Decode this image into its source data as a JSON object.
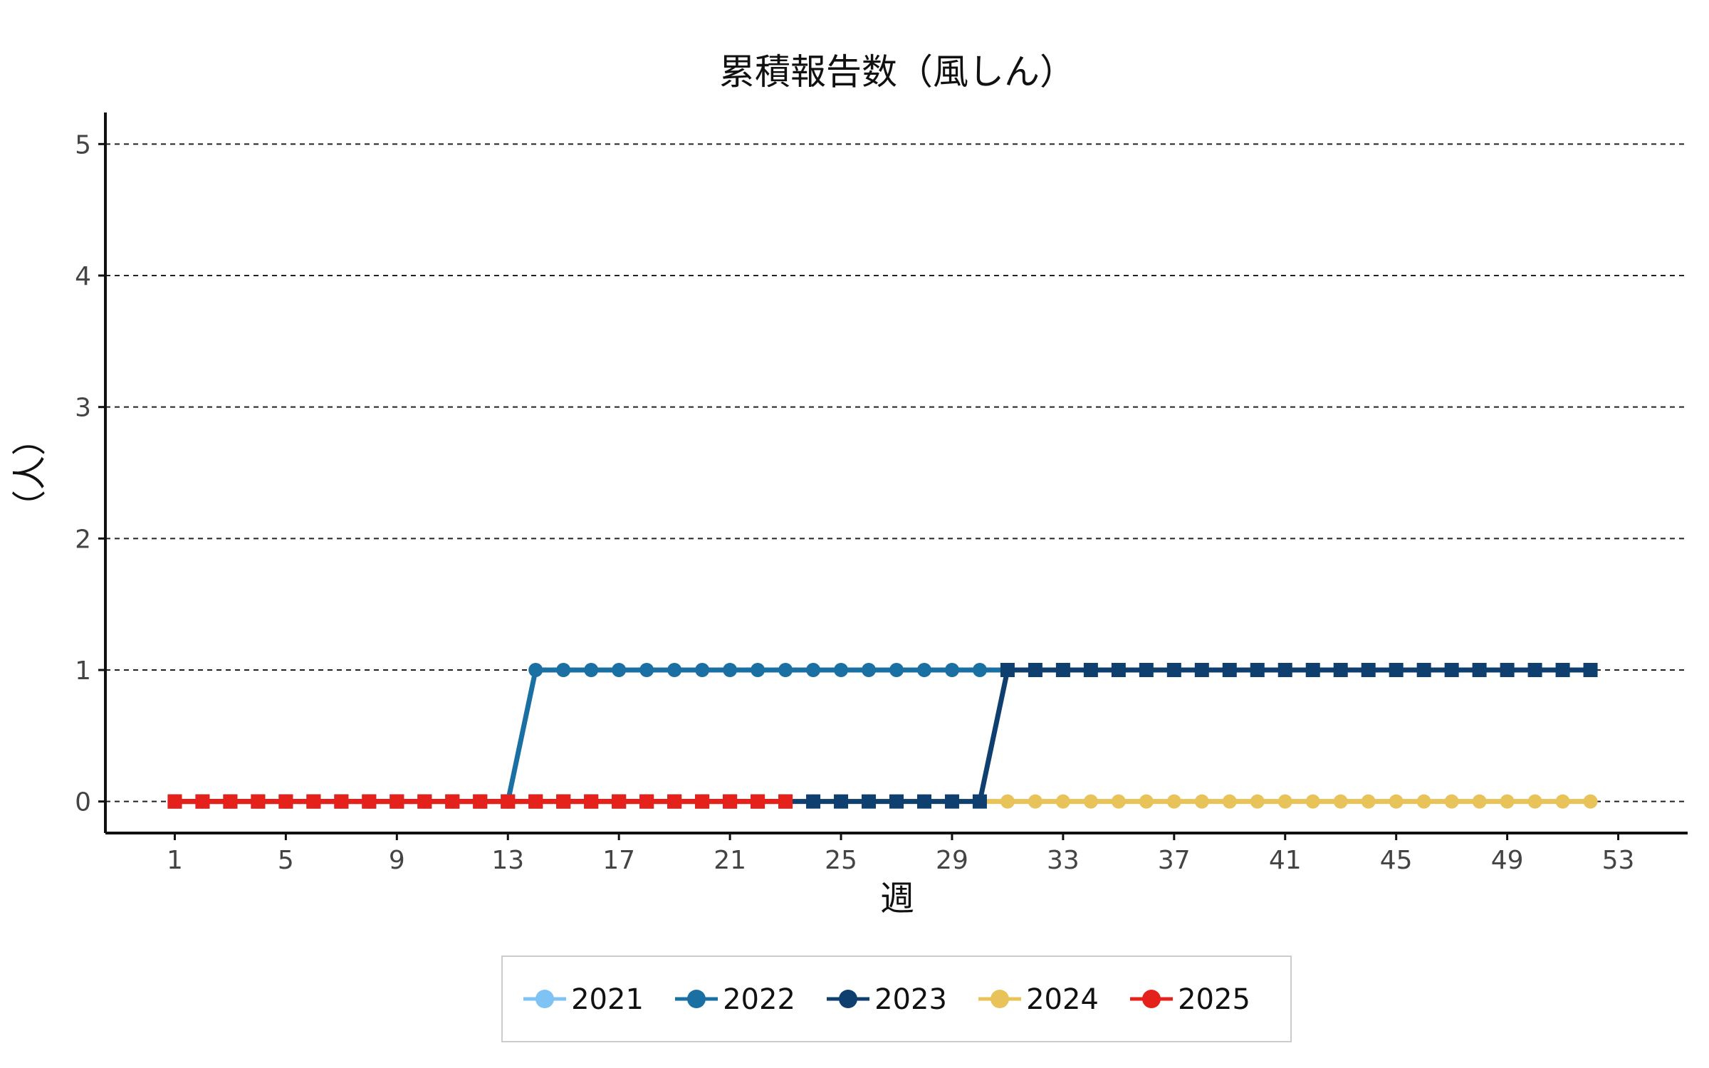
{
  "chart_data": {
    "type": "line",
    "title": "累積報告数（風しん）",
    "xlabel": "週",
    "ylabel": "（人）",
    "xlim": [
      -1.5,
      55.5
    ],
    "ylim": [
      -0.24,
      5.24
    ],
    "xticks": [
      "1",
      "5",
      "9",
      "13",
      "17",
      "21",
      "25",
      "29",
      "33",
      "37",
      "41",
      "45",
      "49",
      "53"
    ],
    "yticks": [
      "0",
      "1",
      "2",
      "3",
      "4",
      "5"
    ],
    "grid": "horizontal-dashed",
    "legend_position": "bottom",
    "series": [
      {
        "name": "2021",
        "color": "#7fc3f5",
        "marker": "circle",
        "points": []
      },
      {
        "name": "2022",
        "color": "#1a6fa3",
        "marker": "circle",
        "points": [
          [
            1,
            0
          ],
          [
            2,
            0
          ],
          [
            3,
            0
          ],
          [
            4,
            0
          ],
          [
            5,
            0
          ],
          [
            6,
            0
          ],
          [
            7,
            0
          ],
          [
            8,
            0
          ],
          [
            9,
            0
          ],
          [
            10,
            0
          ],
          [
            11,
            0
          ],
          [
            12,
            0
          ],
          [
            13,
            0
          ],
          [
            14,
            1
          ],
          [
            15,
            1
          ],
          [
            16,
            1
          ],
          [
            17,
            1
          ],
          [
            18,
            1
          ],
          [
            19,
            1
          ],
          [
            20,
            1
          ],
          [
            21,
            1
          ],
          [
            22,
            1
          ],
          [
            23,
            1
          ],
          [
            24,
            1
          ],
          [
            25,
            1
          ],
          [
            26,
            1
          ],
          [
            27,
            1
          ],
          [
            28,
            1
          ],
          [
            29,
            1
          ],
          [
            30,
            1
          ],
          [
            31,
            1
          ]
        ]
      },
      {
        "name": "2023",
        "color": "#0f3f6e",
        "marker": "square",
        "points": [
          [
            1,
            0
          ],
          [
            2,
            0
          ],
          [
            3,
            0
          ],
          [
            4,
            0
          ],
          [
            5,
            0
          ],
          [
            6,
            0
          ],
          [
            7,
            0
          ],
          [
            8,
            0
          ],
          [
            9,
            0
          ],
          [
            10,
            0
          ],
          [
            11,
            0
          ],
          [
            12,
            0
          ],
          [
            13,
            0
          ],
          [
            14,
            0
          ],
          [
            15,
            0
          ],
          [
            16,
            0
          ],
          [
            17,
            0
          ],
          [
            18,
            0
          ],
          [
            19,
            0
          ],
          [
            20,
            0
          ],
          [
            21,
            0
          ],
          [
            22,
            0
          ],
          [
            23,
            0
          ],
          [
            24,
            0
          ],
          [
            25,
            0
          ],
          [
            26,
            0
          ],
          [
            27,
            0
          ],
          [
            28,
            0
          ],
          [
            29,
            0
          ],
          [
            30,
            0
          ],
          [
            31,
            1
          ],
          [
            32,
            1
          ],
          [
            33,
            1
          ],
          [
            34,
            1
          ],
          [
            35,
            1
          ],
          [
            36,
            1
          ],
          [
            37,
            1
          ],
          [
            38,
            1
          ],
          [
            39,
            1
          ],
          [
            40,
            1
          ],
          [
            41,
            1
          ],
          [
            42,
            1
          ],
          [
            43,
            1
          ],
          [
            44,
            1
          ],
          [
            45,
            1
          ],
          [
            46,
            1
          ],
          [
            47,
            1
          ],
          [
            48,
            1
          ],
          [
            49,
            1
          ],
          [
            50,
            1
          ],
          [
            51,
            1
          ],
          [
            52,
            1
          ]
        ]
      },
      {
        "name": "2024",
        "color": "#e8c35a",
        "marker": "circle",
        "points": [
          [
            1,
            0
          ],
          [
            2,
            0
          ],
          [
            3,
            0
          ],
          [
            4,
            0
          ],
          [
            5,
            0
          ],
          [
            6,
            0
          ],
          [
            7,
            0
          ],
          [
            8,
            0
          ],
          [
            9,
            0
          ],
          [
            10,
            0
          ],
          [
            11,
            0
          ],
          [
            12,
            0
          ],
          [
            13,
            0
          ],
          [
            14,
            0
          ],
          [
            15,
            0
          ],
          [
            16,
            0
          ],
          [
            17,
            0
          ],
          [
            18,
            0
          ],
          [
            19,
            0
          ],
          [
            20,
            0
          ],
          [
            21,
            0
          ],
          [
            22,
            0
          ],
          [
            23,
            0
          ],
          [
            24,
            0
          ],
          [
            25,
            0
          ],
          [
            26,
            0
          ],
          [
            27,
            0
          ],
          [
            28,
            0
          ],
          [
            29,
            0
          ],
          [
            30,
            0
          ],
          [
            31,
            0
          ],
          [
            32,
            0
          ],
          [
            33,
            0
          ],
          [
            34,
            0
          ],
          [
            35,
            0
          ],
          [
            36,
            0
          ],
          [
            37,
            0
          ],
          [
            38,
            0
          ],
          [
            39,
            0
          ],
          [
            40,
            0
          ],
          [
            41,
            0
          ],
          [
            42,
            0
          ],
          [
            43,
            0
          ],
          [
            44,
            0
          ],
          [
            45,
            0
          ],
          [
            46,
            0
          ],
          [
            47,
            0
          ],
          [
            48,
            0
          ],
          [
            49,
            0
          ],
          [
            50,
            0
          ],
          [
            51,
            0
          ],
          [
            52,
            0
          ]
        ]
      },
      {
        "name": "2025",
        "color": "#e4211a",
        "marker": "square",
        "points": [
          [
            1,
            0
          ],
          [
            2,
            0
          ],
          [
            3,
            0
          ],
          [
            4,
            0
          ],
          [
            5,
            0
          ],
          [
            6,
            0
          ],
          [
            7,
            0
          ],
          [
            8,
            0
          ],
          [
            9,
            0
          ],
          [
            10,
            0
          ],
          [
            11,
            0
          ],
          [
            12,
            0
          ],
          [
            13,
            0
          ],
          [
            14,
            0
          ],
          [
            15,
            0
          ],
          [
            16,
            0
          ],
          [
            17,
            0
          ],
          [
            18,
            0
          ],
          [
            19,
            0
          ],
          [
            20,
            0
          ],
          [
            21,
            0
          ],
          [
            22,
            0
          ],
          [
            23,
            0
          ]
        ]
      }
    ]
  }
}
